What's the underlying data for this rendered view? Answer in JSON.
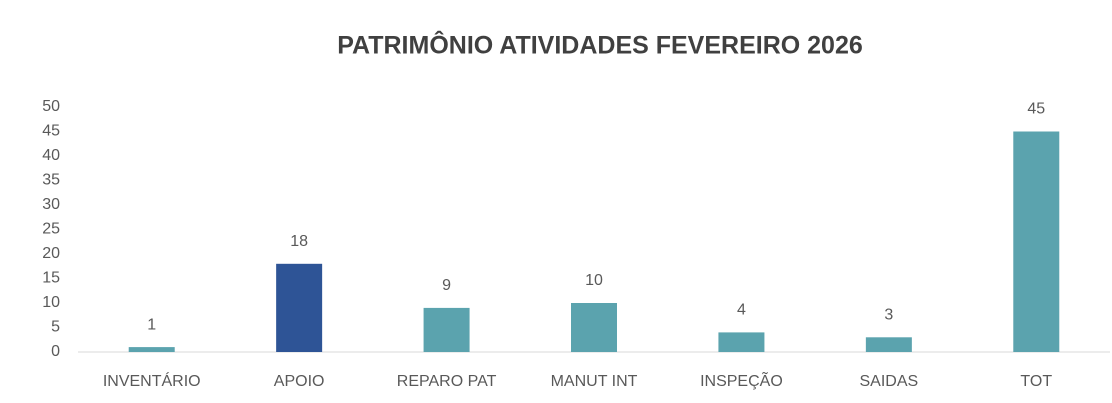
{
  "chart_data": {
    "type": "bar",
    "title": "PATRIMÔNIO ATIVIDADES FEVEREIRO 2026",
    "categories": [
      "INVENTÁRIO",
      "APOIO",
      "REPARO PAT",
      "MANUT INT",
      "INSPEÇÃO",
      "SAIDAS",
      "TOT"
    ],
    "values": [
      1,
      18,
      9,
      10,
      4,
      3,
      45
    ],
    "colors": [
      "#5ba3ae",
      "#2e5496",
      "#5ba3ae",
      "#5ba3ae",
      "#5ba3ae",
      "#5ba3ae",
      "#5ba3ae"
    ],
    "ylim": [
      0,
      50
    ],
    "yticks": [
      0,
      5,
      10,
      15,
      20,
      25,
      30,
      35,
      40,
      45,
      50
    ],
    "grid": false
  }
}
